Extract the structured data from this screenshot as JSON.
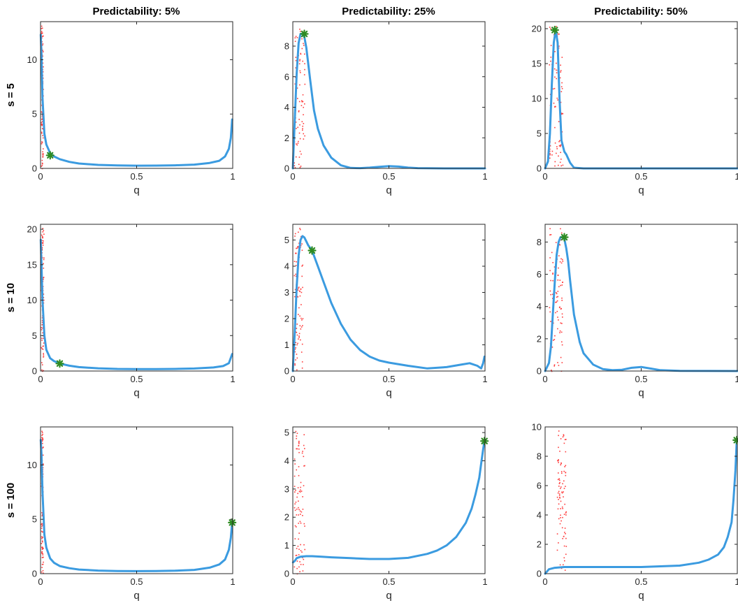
{
  "figure": {
    "column_titles": [
      "Predictability: 5%",
      "Predictability: 25%",
      "Predictability: 50%"
    ],
    "row_labels": [
      "s = 5",
      "s = 10",
      "s = 100"
    ],
    "colors": {
      "curve": "#3b9be0",
      "marker": "#2e8b22",
      "marker_edge": "#1f6b17",
      "scatter": "#ff3b3b",
      "axis": "#262626"
    }
  },
  "chart_data": [
    {
      "type": "line",
      "title": "Predictability: 5%",
      "xlabel": "q",
      "ylabel": "s = 5",
      "xlim": [
        0,
        1
      ],
      "ylim": [
        0,
        13.5
      ],
      "xticks": [
        0,
        0.5,
        1
      ],
      "xtick_labels": [
        "0",
        "0.5",
        "1"
      ],
      "yticks": [
        0,
        5,
        10
      ],
      "ytick_labels": [
        "0",
        "5",
        "10"
      ],
      "x": [
        0.001,
        0.005,
        0.01,
        0.02,
        0.03,
        0.05,
        0.07,
        0.1,
        0.15,
        0.2,
        0.3,
        0.4,
        0.5,
        0.6,
        0.7,
        0.8,
        0.88,
        0.93,
        0.96,
        0.98,
        0.99,
        0.997
      ],
      "y": [
        12.3,
        10.5,
        6.5,
        3.2,
        2.2,
        1.4,
        1.1,
        0.85,
        0.6,
        0.45,
        0.32,
        0.27,
        0.25,
        0.26,
        0.28,
        0.35,
        0.5,
        0.7,
        1.1,
        1.8,
        2.8,
        4.5
      ],
      "marker": {
        "x": 0.05,
        "y": 1.2
      },
      "scatter_band": [
        0.002,
        0.012
      ],
      "scatter_ymax": 13.3
    },
    {
      "type": "line",
      "title": "Predictability: 25%",
      "xlabel": "q",
      "ylabel": "",
      "xlim": [
        0,
        1
      ],
      "ylim": [
        0,
        9.6
      ],
      "xticks": [
        0,
        0.5,
        1
      ],
      "xtick_labels": [
        "0",
        "0.5",
        "1"
      ],
      "yticks": [
        0,
        2,
        4,
        6,
        8
      ],
      "ytick_labels": [
        "0",
        "2",
        "4",
        "6",
        "8"
      ],
      "x": [
        0,
        0.01,
        0.02,
        0.03,
        0.04,
        0.05,
        0.06,
        0.07,
        0.09,
        0.11,
        0.13,
        0.16,
        0.2,
        0.25,
        0.3,
        0.35,
        0.4,
        0.45,
        0.5,
        0.55,
        0.6,
        0.65,
        0.7,
        0.8,
        0.9,
        1.0
      ],
      "y": [
        0,
        3.2,
        6.2,
        8.2,
        8.8,
        8.8,
        8.6,
        7.9,
        5.8,
        3.8,
        2.6,
        1.5,
        0.7,
        0.2,
        0.03,
        0.02,
        0.05,
        0.1,
        0.15,
        0.12,
        0.05,
        0.02,
        0.01,
        0,
        0,
        0
      ],
      "marker": {
        "x": 0.06,
        "y": 8.8
      },
      "scatter_band": [
        0.005,
        0.06
      ],
      "scatter_ymax": 9.4
    },
    {
      "type": "line",
      "title": "Predictability: 50%",
      "xlabel": "q",
      "ylabel": "",
      "xlim": [
        0,
        1
      ],
      "ylim": [
        0,
        21
      ],
      "xticks": [
        0,
        0.5,
        1
      ],
      "xtick_labels": [
        "0",
        "0.5",
        "1"
      ],
      "yticks": [
        0,
        5,
        10,
        15,
        20
      ],
      "ytick_labels": [
        "0",
        "5",
        "10",
        "15",
        "20"
      ],
      "x": [
        0,
        0.015,
        0.025,
        0.035,
        0.045,
        0.055,
        0.065,
        0.075,
        0.085,
        0.1,
        0.11,
        0.13,
        0.15,
        0.2,
        0.5,
        1.0
      ],
      "y": [
        0,
        1,
        5,
        12,
        18,
        19.8,
        18,
        10,
        4,
        2.4,
        2,
        0.8,
        0.1,
        0,
        0,
        0
      ],
      "marker": {
        "x": 0.05,
        "y": 19.8
      },
      "scatter_band": [
        0.02,
        0.09
      ],
      "scatter_ymax": 20.7
    },
    {
      "type": "line",
      "title": "",
      "xlabel": "q",
      "ylabel": "s = 10",
      "xlim": [
        0,
        1
      ],
      "ylim": [
        0,
        20.7
      ],
      "xticks": [
        0,
        0.5,
        1
      ],
      "xtick_labels": [
        "0",
        "0.5",
        "1"
      ],
      "yticks": [
        0,
        5,
        10,
        15,
        20
      ],
      "ytick_labels": [
        "0",
        "5",
        "10",
        "15",
        "20"
      ],
      "x": [
        0.001,
        0.005,
        0.01,
        0.02,
        0.03,
        0.05,
        0.07,
        0.1,
        0.15,
        0.2,
        0.3,
        0.4,
        0.5,
        0.6,
        0.7,
        0.8,
        0.9,
        0.95,
        0.98,
        0.997
      ],
      "y": [
        18.5,
        15,
        10,
        5,
        3,
        1.8,
        1.4,
        1.05,
        0.75,
        0.55,
        0.38,
        0.3,
        0.28,
        0.27,
        0.3,
        0.35,
        0.5,
        0.7,
        1.1,
        2.4
      ],
      "marker": {
        "x": 0.1,
        "y": 1.05
      },
      "scatter_band": [
        0.002,
        0.015
      ],
      "scatter_ymax": 20.5
    },
    {
      "type": "line",
      "title": "",
      "xlabel": "q",
      "ylabel": "",
      "xlim": [
        0,
        1
      ],
      "ylim": [
        0,
        5.6
      ],
      "xticks": [
        0,
        0.5,
        1
      ],
      "xtick_labels": [
        "0",
        "0.5",
        "1"
      ],
      "yticks": [
        0,
        1,
        2,
        3,
        4,
        5
      ],
      "ytick_labels": [
        "0",
        "1",
        "2",
        "3",
        "4",
        "5"
      ],
      "x": [
        0,
        0.01,
        0.02,
        0.03,
        0.04,
        0.05,
        0.06,
        0.07,
        0.08,
        0.1,
        0.13,
        0.16,
        0.2,
        0.25,
        0.3,
        0.35,
        0.4,
        0.45,
        0.5,
        0.6,
        0.7,
        0.8,
        0.88,
        0.92,
        0.96,
        0.98,
        0.99,
        0.997
      ],
      "y": [
        0,
        1.5,
        3.2,
        4.4,
        5.0,
        5.15,
        5.1,
        4.95,
        4.8,
        4.6,
        4.0,
        3.4,
        2.6,
        1.8,
        1.2,
        0.8,
        0.55,
        0.4,
        0.32,
        0.2,
        0.1,
        0.15,
        0.25,
        0.3,
        0.2,
        0.1,
        0.3,
        0.55
      ],
      "marker": {
        "x": 0.1,
        "y": 4.6
      },
      "scatter_band": [
        0.005,
        0.05
      ],
      "scatter_ymax": 5.5
    },
    {
      "type": "line",
      "title": "",
      "xlabel": "q",
      "ylabel": "",
      "xlim": [
        0,
        1
      ],
      "ylim": [
        0,
        9.1
      ],
      "xticks": [
        0,
        0.5,
        1
      ],
      "xtick_labels": [
        "0",
        "0.5",
        "1"
      ],
      "yticks": [
        0,
        2,
        4,
        6,
        8
      ],
      "ytick_labels": [
        "0",
        "2",
        "4",
        "6",
        "8"
      ],
      "x": [
        0,
        0.02,
        0.03,
        0.04,
        0.05,
        0.06,
        0.07,
        0.08,
        0.09,
        0.1,
        0.11,
        0.12,
        0.13,
        0.15,
        0.18,
        0.2,
        0.25,
        0.3,
        0.35,
        0.4,
        0.45,
        0.5,
        0.55,
        0.6,
        0.7,
        1.0
      ],
      "y": [
        0,
        0.5,
        1.5,
        3.5,
        5.5,
        7.2,
        8.0,
        8.3,
        8.3,
        8.2,
        7.6,
        6.8,
        5.6,
        3.5,
        1.8,
        1.1,
        0.4,
        0.12,
        0.05,
        0.08,
        0.2,
        0.25,
        0.15,
        0.05,
        0.01,
        0
      ],
      "marker": {
        "x": 0.1,
        "y": 8.3
      },
      "scatter_band": [
        0.02,
        0.09
      ],
      "scatter_ymax": 9.0
    },
    {
      "type": "line",
      "title": "",
      "xlabel": "q",
      "ylabel": "s = 100",
      "xlim": [
        0,
        1
      ],
      "ylim": [
        0,
        13.5
      ],
      "xticks": [
        0,
        0.5,
        1
      ],
      "xtick_labels": [
        "0",
        "0.5",
        "1"
      ],
      "yticks": [
        0,
        5,
        10
      ],
      "ytick_labels": [
        "0",
        "5",
        "10"
      ],
      "x": [
        0.001,
        0.005,
        0.01,
        0.02,
        0.03,
        0.05,
        0.07,
        0.1,
        0.15,
        0.2,
        0.3,
        0.4,
        0.5,
        0.6,
        0.7,
        0.8,
        0.88,
        0.93,
        0.96,
        0.98,
        0.99,
        0.997
      ],
      "y": [
        12.3,
        11,
        7.5,
        3.6,
        2.4,
        1.4,
        1.0,
        0.7,
        0.5,
        0.38,
        0.28,
        0.24,
        0.23,
        0.24,
        0.27,
        0.35,
        0.55,
        0.85,
        1.3,
        2.2,
        3.3,
        4.7
      ],
      "marker": {
        "x": 0.997,
        "y": 4.7
      },
      "scatter_band": [
        0.002,
        0.012
      ],
      "scatter_ymax": 13.3
    },
    {
      "type": "line",
      "title": "",
      "xlabel": "q",
      "ylabel": "",
      "xlim": [
        0,
        1
      ],
      "ylim": [
        0,
        5.2
      ],
      "xticks": [
        0,
        0.5,
        1
      ],
      "xtick_labels": [
        "0",
        "0.5",
        "1"
      ],
      "yticks": [
        0,
        1,
        2,
        3,
        4,
        5
      ],
      "ytick_labels": [
        "0",
        "1",
        "2",
        "3",
        "4",
        "5"
      ],
      "x": [
        0.001,
        0.01,
        0.02,
        0.04,
        0.07,
        0.1,
        0.15,
        0.2,
        0.3,
        0.4,
        0.5,
        0.6,
        0.7,
        0.75,
        0.8,
        0.85,
        0.9,
        0.93,
        0.95,
        0.97,
        0.98,
        0.99,
        0.997
      ],
      "y": [
        0.4,
        0.45,
        0.55,
        0.6,
        0.62,
        0.62,
        0.6,
        0.58,
        0.55,
        0.52,
        0.52,
        0.56,
        0.7,
        0.82,
        1.0,
        1.3,
        1.8,
        2.3,
        2.8,
        3.4,
        3.9,
        4.4,
        4.7
      ],
      "marker": {
        "x": 0.997,
        "y": 4.7
      },
      "scatter_band": [
        0.005,
        0.06
      ],
      "scatter_ymax": 5.1
    },
    {
      "type": "line",
      "title": "",
      "xlabel": "q",
      "ylabel": "",
      "xlim": [
        0,
        1
      ],
      "ylim": [
        0,
        10
      ],
      "xticks": [
        0,
        0.5,
        1
      ],
      "xtick_labels": [
        "0",
        "0.5",
        "1"
      ],
      "yticks": [
        0,
        2,
        4,
        6,
        8,
        10
      ],
      "ytick_labels": [
        "0",
        "2",
        "4",
        "6",
        "8",
        "10"
      ],
      "x": [
        0,
        0.02,
        0.05,
        0.1,
        0.2,
        0.3,
        0.4,
        0.5,
        0.6,
        0.7,
        0.8,
        0.85,
        0.9,
        0.93,
        0.95,
        0.97,
        0.98,
        0.99,
        0.997
      ],
      "y": [
        0,
        0.3,
        0.4,
        0.45,
        0.45,
        0.45,
        0.45,
        0.45,
        0.5,
        0.55,
        0.75,
        0.95,
        1.3,
        1.8,
        2.5,
        3.5,
        5,
        7,
        9.1
      ],
      "marker": {
        "x": 0.997,
        "y": 9.1
      },
      "scatter_band": [
        0.06,
        0.11
      ],
      "scatter_ymax": 9.9
    }
  ]
}
